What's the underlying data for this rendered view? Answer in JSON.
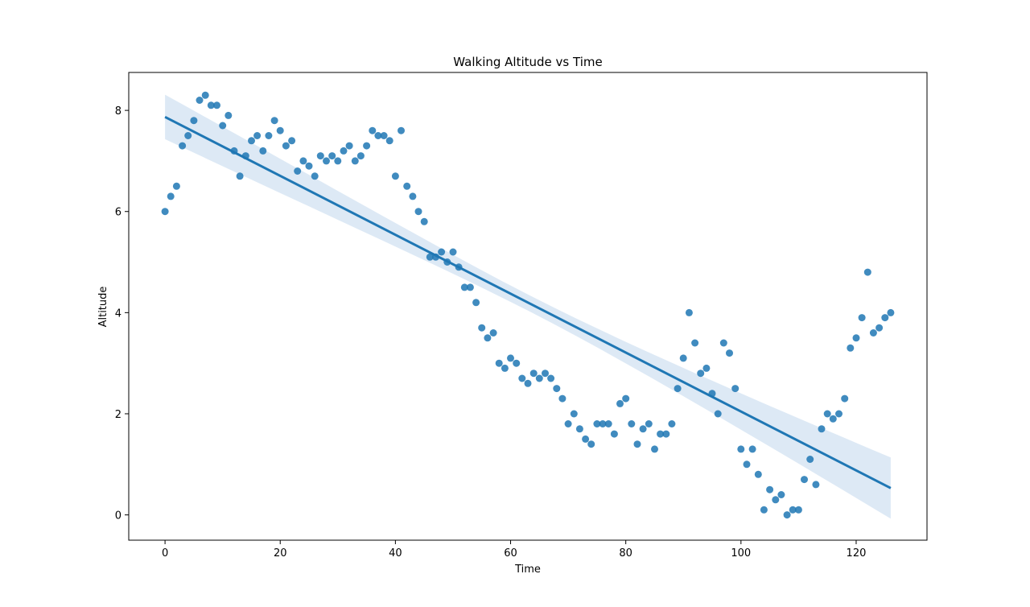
{
  "chart_data": {
    "type": "scatter",
    "title": "Walking Altitude vs Time",
    "xlabel": "Time",
    "ylabel": "Altitude",
    "xlim": [
      -6.3,
      132.3
    ],
    "ylim": [
      -0.5,
      8.75
    ],
    "xticks": [
      0,
      20,
      40,
      60,
      80,
      100,
      120
    ],
    "yticks": [
      0,
      2,
      4,
      6,
      8
    ],
    "grid": false,
    "legend": "none",
    "colors": {
      "points": "#1f77b4",
      "line": "#1f77b4",
      "band": "#c6dbef"
    },
    "series": [
      {
        "x": [
          0,
          1,
          2,
          3,
          4,
          5,
          6,
          7,
          8,
          9,
          10,
          11,
          12,
          13,
          14,
          15,
          16,
          17,
          18,
          19,
          20,
          21,
          22,
          23,
          24,
          25,
          26,
          27,
          28,
          29,
          30,
          31,
          32,
          33,
          34,
          35,
          36,
          37,
          38,
          39,
          40,
          41,
          42,
          43,
          44,
          45,
          46,
          47,
          48,
          49,
          50,
          51,
          52,
          53,
          54,
          55,
          56,
          57,
          58,
          59,
          60,
          61,
          62,
          63,
          64,
          65,
          66,
          67,
          68,
          69,
          70,
          71,
          72,
          73,
          74,
          75,
          76,
          77,
          78,
          79,
          80,
          81,
          82,
          83,
          84,
          85,
          86,
          87,
          88,
          89,
          90,
          91,
          92,
          93,
          94,
          95,
          96,
          97,
          98,
          99,
          100,
          101,
          102,
          103,
          104,
          105,
          106,
          107,
          108,
          109,
          110,
          111,
          112,
          113,
          114,
          115,
          116,
          117,
          118,
          119,
          120,
          121,
          122,
          123,
          124,
          125,
          126
        ],
        "y": [
          6.0,
          6.3,
          6.5,
          7.3,
          7.5,
          7.8,
          8.2,
          8.3,
          8.1,
          8.1,
          7.7,
          7.9,
          7.2,
          6.7,
          7.1,
          7.4,
          7.5,
          7.2,
          7.5,
          7.8,
          7.6,
          7.3,
          7.4,
          6.8,
          7.0,
          6.9,
          6.7,
          7.1,
          7.0,
          7.1,
          7.0,
          7.2,
          7.3,
          7.0,
          7.1,
          7.3,
          7.6,
          7.5,
          7.5,
          7.4,
          6.7,
          7.6,
          6.5,
          6.3,
          6.0,
          5.8,
          5.1,
          5.1,
          5.2,
          5.0,
          5.2,
          4.9,
          4.5,
          4.5,
          4.2,
          3.7,
          3.5,
          3.6,
          3.0,
          2.9,
          3.1,
          3.0,
          2.7,
          2.6,
          2.8,
          2.7,
          2.8,
          2.7,
          2.5,
          2.3,
          1.8,
          2.0,
          1.7,
          1.5,
          1.4,
          1.8,
          1.8,
          1.8,
          1.6,
          2.2,
          2.3,
          1.8,
          1.4,
          1.7,
          1.8,
          1.3,
          1.6,
          1.6,
          1.8,
          2.5,
          3.1,
          4.0,
          3.4,
          2.8,
          2.9,
          2.4,
          2.0,
          3.4,
          3.2,
          2.5,
          1.3,
          1.0,
          1.3,
          0.8,
          0.1,
          0.5,
          0.3,
          0.4,
          0.0,
          0.1,
          0.1,
          0.7,
          1.1,
          0.6,
          1.7,
          2.0,
          1.9,
          2.0,
          2.3,
          3.3,
          3.5,
          3.9,
          4.8,
          3.6,
          3.7,
          3.9,
          4.0
        ]
      }
    ],
    "regression": {
      "x": [
        0,
        126
      ],
      "y": [
        7.87,
        0.53
      ],
      "ci_lower": [
        7.42,
        -0.08
      ],
      "ci_upper": [
        8.3,
        1.13
      ]
    }
  }
}
